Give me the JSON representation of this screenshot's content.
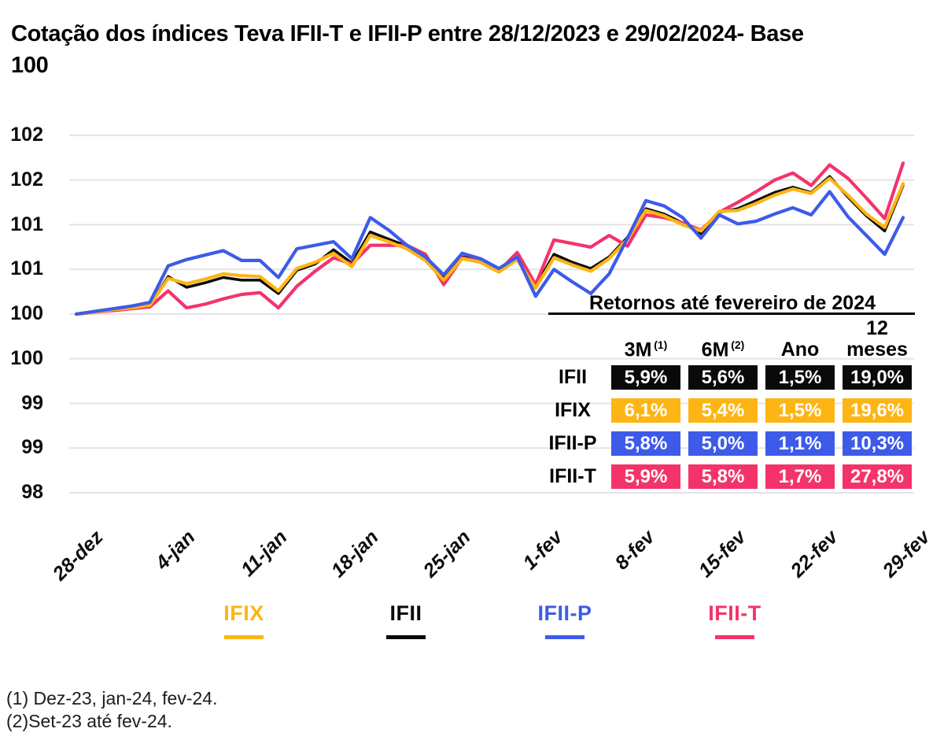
{
  "title": "Cotação dos índices Teva IFII-T e IFII-P entre 28/12/2023 e 29/02/2024- Base 100",
  "chart_data": {
    "type": "line",
    "title": "Cotação dos índices Teva IFII-T e IFII-P entre 28/12/2023 e 29/02/2024- Base 100",
    "base_note": "Base 100",
    "grid": true,
    "y_axis": {
      "min": 98,
      "max": 102,
      "step": 0.5
    },
    "y_tick_labels": [
      "102",
      "102",
      "101",
      "101",
      "100",
      "100",
      "99",
      "99",
      "98"
    ],
    "x_tick_labels": [
      "28-dez",
      "4-jan",
      "11-jan",
      "18-jan",
      "25-jan",
      "1-fev",
      "8-fev",
      "15-fev",
      "22-fev",
      "29-fev"
    ],
    "gridline_color": "#E4E4E4",
    "series": [
      {
        "name": "IFIX",
        "color": "#FDB515",
        "values": [
          100.0,
          100.02,
          100.05,
          100.07,
          100.1,
          100.4,
          100.34,
          100.39,
          100.45,
          100.43,
          100.42,
          100.26,
          100.51,
          100.58,
          100.68,
          100.53,
          100.88,
          100.81,
          100.73,
          100.6,
          100.38,
          100.62,
          100.58,
          100.47,
          100.61,
          100.29,
          100.63,
          100.55,
          100.48,
          100.62,
          100.84,
          101.16,
          101.1,
          101.0,
          100.93,
          101.15,
          101.16,
          101.24,
          101.33,
          101.4,
          101.35,
          101.52,
          101.33,
          101.12,
          100.97,
          101.46
        ]
      },
      {
        "name": "IFII",
        "color": "#0A0A0A",
        "values": [
          100.0,
          100.02,
          100.05,
          100.07,
          100.1,
          100.42,
          100.3,
          100.35,
          100.41,
          100.38,
          100.38,
          100.23,
          100.49,
          100.56,
          100.72,
          100.57,
          100.92,
          100.84,
          100.76,
          100.63,
          100.42,
          100.64,
          100.61,
          100.48,
          100.63,
          100.31,
          100.67,
          100.58,
          100.51,
          100.64,
          100.86,
          101.18,
          101.12,
          101.02,
          100.9,
          101.14,
          101.18,
          101.27,
          101.36,
          101.42,
          101.36,
          101.54,
          101.31,
          101.1,
          100.93,
          101.44
        ]
      },
      {
        "name": "IFII-P",
        "color": "#3D5BE8",
        "values": [
          100.0,
          100.03,
          100.06,
          100.09,
          100.13,
          100.54,
          100.61,
          100.66,
          100.71,
          100.6,
          100.6,
          100.41,
          100.73,
          100.77,
          100.81,
          100.62,
          101.08,
          100.94,
          100.77,
          100.64,
          100.44,
          100.68,
          100.62,
          100.51,
          100.64,
          100.2,
          100.5,
          100.36,
          100.23,
          100.45,
          100.85,
          101.27,
          101.21,
          101.08,
          100.85,
          101.11,
          101.01,
          101.04,
          101.12,
          101.19,
          101.11,
          101.37,
          101.09,
          100.88,
          100.67,
          101.08
        ]
      },
      {
        "name": "IFII-T",
        "color": "#F4336B",
        "values": [
          100.0,
          100.02,
          100.04,
          100.06,
          100.08,
          100.26,
          100.07,
          100.11,
          100.17,
          100.22,
          100.24,
          100.07,
          100.31,
          100.48,
          100.63,
          100.56,
          100.77,
          100.77,
          100.77,
          100.67,
          100.33,
          100.63,
          100.59,
          100.48,
          100.69,
          100.33,
          100.83,
          100.79,
          100.75,
          100.88,
          100.76,
          101.11,
          101.08,
          101.02,
          100.94,
          101.14,
          101.25,
          101.37,
          101.5,
          101.58,
          101.44,
          101.67,
          101.52,
          101.3,
          101.07,
          101.69
        ]
      }
    ]
  },
  "returns_table": {
    "title": "Retornos até fevereiro de 2024",
    "col_headers": [
      {
        "label": "3M",
        "sup": "(1)"
      },
      {
        "label": "6M",
        "sup": "(2)"
      },
      {
        "label": "Ano",
        "sup": ""
      },
      {
        "label": "12 meses",
        "sup": ""
      }
    ],
    "rows": [
      {
        "name": "IFII",
        "color": "#0A0A0A",
        "values": [
          "5,9%",
          "5,6%",
          "1,5%",
          "19,0%"
        ]
      },
      {
        "name": "IFIX",
        "color": "#FDB515",
        "values": [
          "6,1%",
          "5,4%",
          "1,5%",
          "19,6%"
        ]
      },
      {
        "name": "IFII-P",
        "color": "#3D5BE8",
        "values": [
          "5,8%",
          "5,0%",
          "1,1%",
          "10,3%"
        ]
      },
      {
        "name": "IFII-T",
        "color": "#F4336B",
        "values": [
          "5,9%",
          "5,8%",
          "1,7%",
          "27,8%"
        ]
      }
    ]
  },
  "legend": [
    {
      "label": "IFIX",
      "color": "#FDB515"
    },
    {
      "label": "IFII",
      "color": "#0A0A0A"
    },
    {
      "label": "IFII-P",
      "color": "#3D5BE8"
    },
    {
      "label": "IFII-T",
      "color": "#F4336B"
    }
  ],
  "footnotes": [
    "(1) Dez-23, jan-24, fev-24.",
    "(2)Set-23 até fev-24."
  ]
}
